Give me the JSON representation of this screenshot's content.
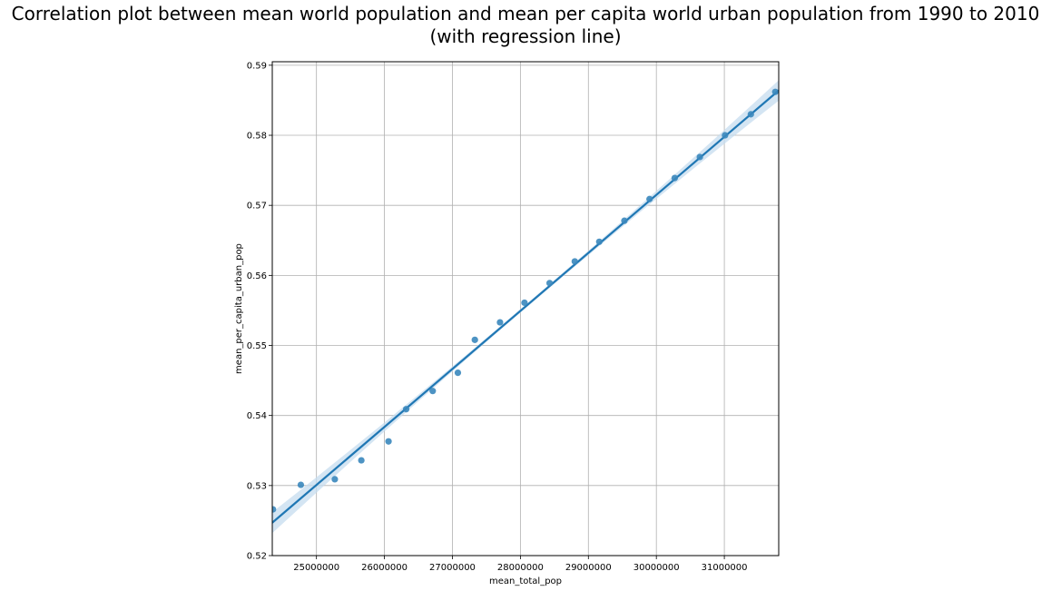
{
  "chart_data": {
    "type": "scatter",
    "title": [
      "Correlation plot between mean world population and mean per capita world urban population from 1990 to 2010",
      "(with regression line)"
    ],
    "xlabel": "mean_total_pop",
    "ylabel": "mean_per_capita_urban_pop",
    "xlim": [
      24350000,
      31800000
    ],
    "ylim": [
      0.52,
      0.5905
    ],
    "x_ticks": [
      25000000,
      26000000,
      27000000,
      28000000,
      29000000,
      30000000,
      31000000
    ],
    "x_tick_labels": [
      "25000000",
      "26000000",
      "27000000",
      "28000000",
      "29000000",
      "30000000",
      "31000000"
    ],
    "y_ticks": [
      0.52,
      0.53,
      0.54,
      0.55,
      0.56,
      0.57,
      0.58,
      0.59
    ],
    "y_tick_labels": [
      "0.52",
      "0.53",
      "0.54",
      "0.55",
      "0.56",
      "0.57",
      "0.58",
      "0.59"
    ],
    "grid": true,
    "points": {
      "x": [
        24360000,
        24770000,
        25270000,
        25660000,
        26060000,
        26320000,
        26710000,
        27080000,
        27330000,
        27700000,
        28060000,
        28430000,
        28800000,
        29160000,
        29530000,
        29900000,
        30270000,
        30640000,
        31010000,
        31390000,
        31750000
      ],
      "y": [
        0.5266,
        0.5301,
        0.5309,
        0.5336,
        0.5363,
        0.5409,
        0.5435,
        0.5461,
        0.5508,
        0.5533,
        0.5561,
        0.5589,
        0.562,
        0.5648,
        0.5678,
        0.5709,
        0.5739,
        0.5769,
        0.58,
        0.583,
        0.5862
      ]
    },
    "regression": {
      "x": [
        24350000,
        31800000
      ],
      "y": [
        0.5247,
        0.5864
      ]
    },
    "colors": {
      "points": "#3a87bd",
      "line": "#1f77b4",
      "ci_band": "#c6dcef",
      "grid": "#b0b0b0"
    }
  }
}
